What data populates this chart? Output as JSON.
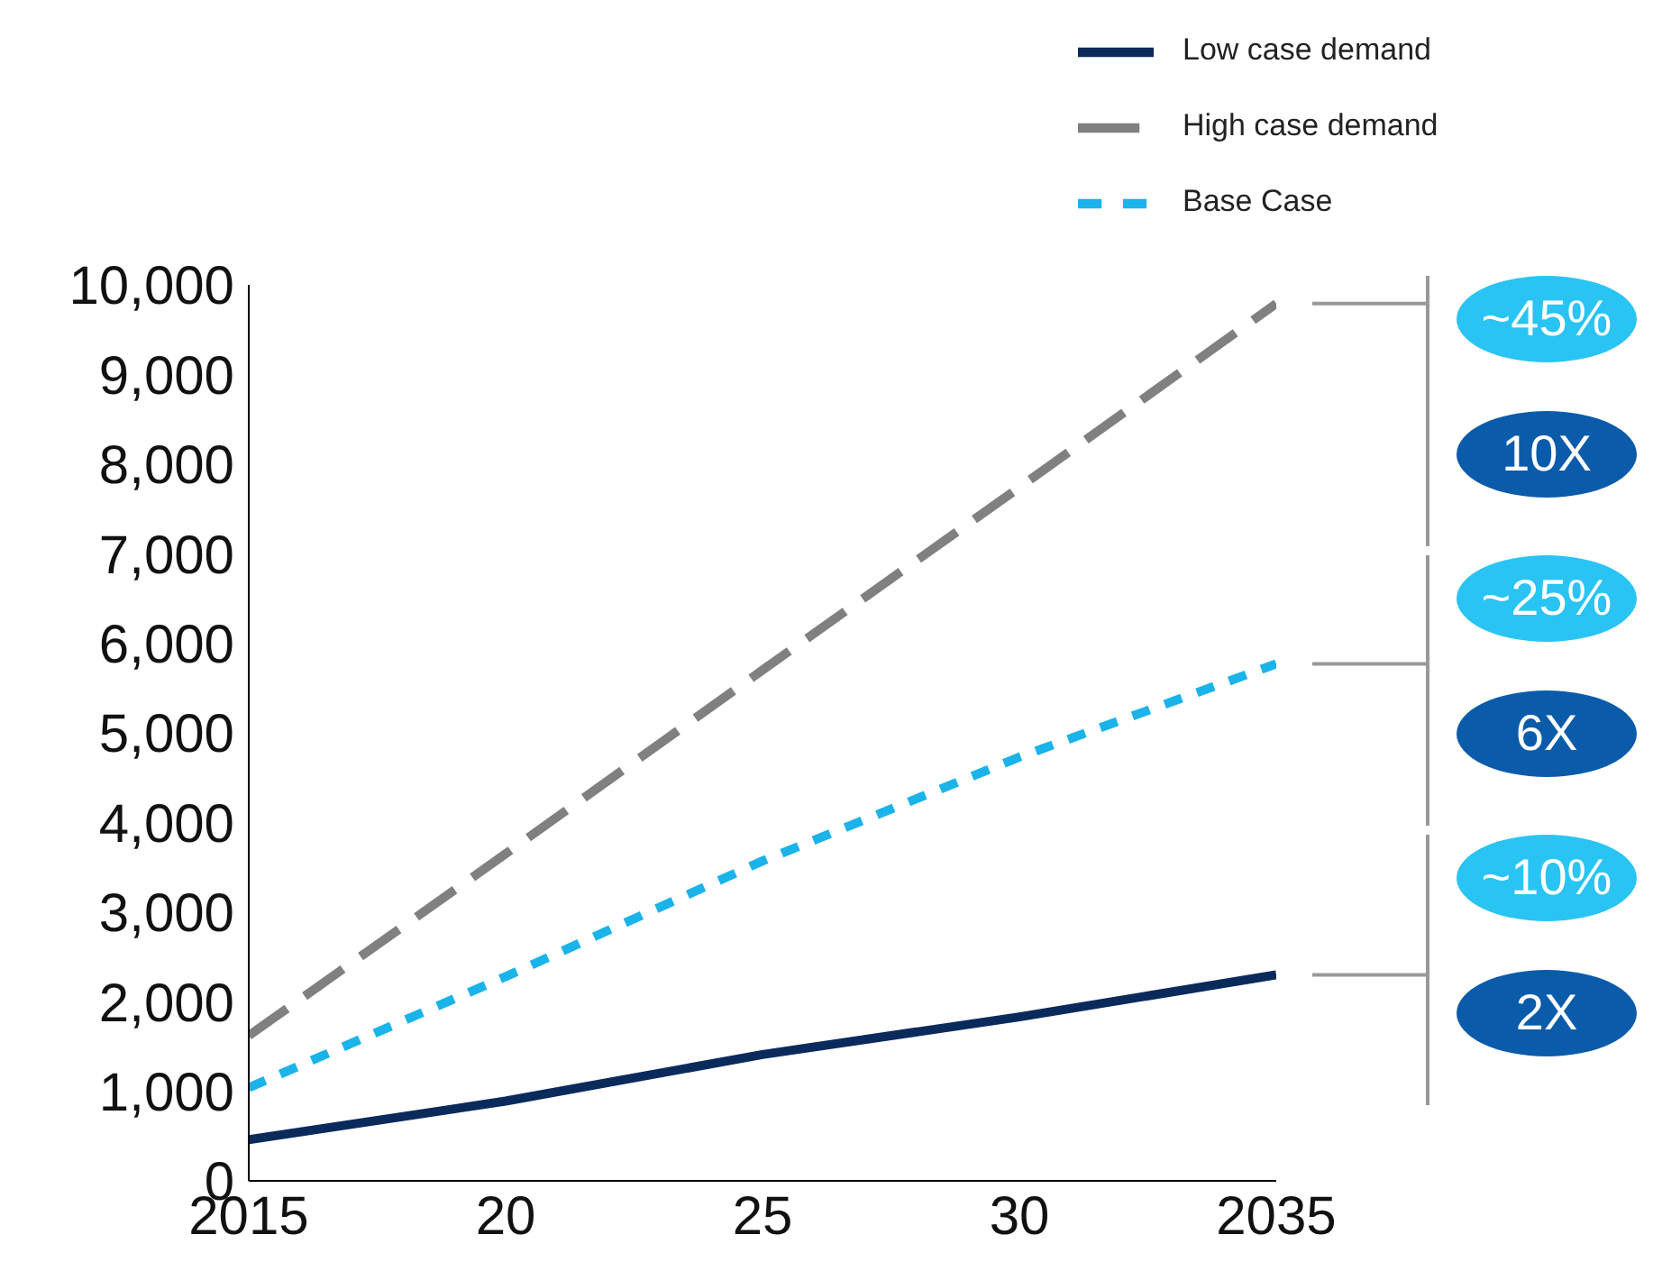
{
  "chart_data": {
    "type": "line",
    "x": [
      2015,
      2020,
      2025,
      2030,
      2035
    ],
    "series": [
      {
        "name": "Low case demand",
        "color": "#0b2a5c",
        "values": [
          460,
          890,
          1410,
          1830,
          2300
        ],
        "line_style": "solid"
      },
      {
        "name": "High case demand",
        "color": "#808080",
        "values": [
          1620,
          3650,
          5700,
          7740,
          9790
        ],
        "line_style": "dashed"
      },
      {
        "name": "Base Case",
        "color": "#1ab3ea",
        "values": [
          1040,
          2280,
          3570,
          4730,
          5770
        ],
        "line_style": "dotted"
      }
    ],
    "xlim": [
      2015,
      2035
    ],
    "xticks": [
      {
        "value": 2015,
        "label": "2015"
      },
      {
        "value": 2020,
        "label": "20"
      },
      {
        "value": 2025,
        "label": "25"
      },
      {
        "value": 2030,
        "label": "30"
      },
      {
        "value": 2035,
        "label": "2035"
      }
    ],
    "ylim": [
      0,
      10000
    ],
    "yticks": [
      0,
      {
        "value": 1000,
        "label": "1,000"
      },
      {
        "value": 2000,
        "label": "2,000"
      },
      {
        "value": 3000,
        "label": "3,000"
      },
      {
        "value": 4000,
        "label": "4,000"
      },
      {
        "value": 5000,
        "label": "5,000"
      },
      {
        "value": 6000,
        "label": "6,000"
      },
      {
        "value": 7000,
        "label": "7,000"
      },
      {
        "value": 8000,
        "label": "8,000"
      },
      {
        "value": 9000,
        "label": "9,000"
      },
      {
        "value": 10000,
        "label": "10,000"
      }
    ],
    "grid": false,
    "legend": "top right",
    "marker": "none",
    "annotations": [
      "~45%",
      "10X",
      "~25%",
      "6X",
      "~10%",
      "2X"
    ]
  }
}
